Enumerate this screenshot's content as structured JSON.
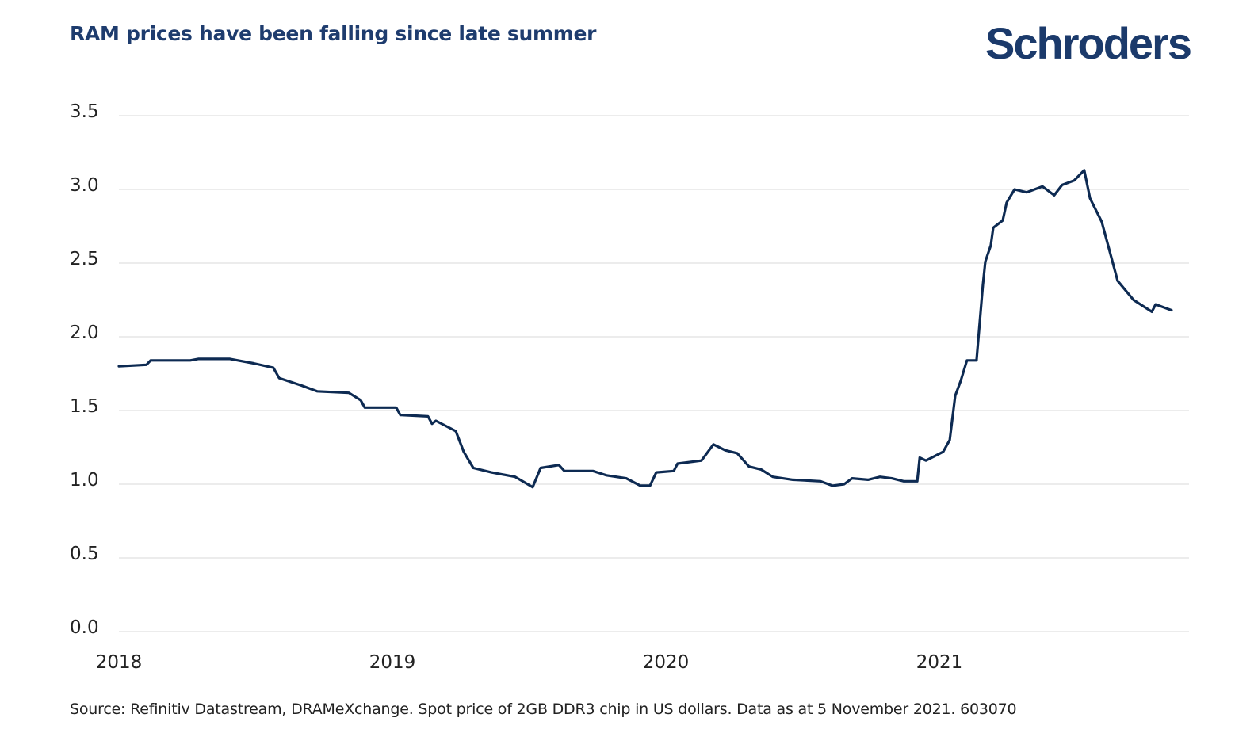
{
  "title": "RAM prices have been falling since late summer",
  "logo_text": "Schroders",
  "source": "Source: Refinitiv Datastream, DRAMeXchange. Spot price of 2GB DDR3 chip in US dollars. Data as at 5 November 2021. 603070",
  "colors": {
    "line": "#0d2a52",
    "title": "#1e3c6e",
    "grid": "#e6e6e6"
  },
  "chart_data": {
    "type": "line",
    "title": "RAM prices have been falling since late summer",
    "xlabel": "",
    "ylabel": "",
    "xlim": [
      2018,
      2021.92
    ],
    "ylim": [
      0,
      3.5
    ],
    "grid": "horizontal",
    "legend": "none",
    "x_ticks": [
      "2018",
      "2019",
      "2020",
      "2021"
    ],
    "y_ticks": [
      "0.0",
      "0.5",
      "1.0",
      "1.5",
      "2.0",
      "2.5",
      "3.0",
      "3.5"
    ],
    "series": [
      {
        "points": [
          [
            2018.0,
            1.8
          ],
          [
            2018.101,
            1.81
          ],
          [
            2018.116,
            1.84
          ],
          [
            2018.261,
            1.84
          ],
          [
            2018.29,
            1.85
          ],
          [
            2018.406,
            1.85
          ],
          [
            2018.435,
            1.84
          ],
          [
            2018.493,
            1.82
          ],
          [
            2018.565,
            1.79
          ],
          [
            2018.586,
            1.72
          ],
          [
            2018.667,
            1.67
          ],
          [
            2018.725,
            1.63
          ],
          [
            2018.841,
            1.62
          ],
          [
            2018.884,
            1.57
          ],
          [
            2018.899,
            1.52
          ],
          [
            2019.014,
            1.52
          ],
          [
            2019.029,
            1.47
          ],
          [
            2019.13,
            1.46
          ],
          [
            2019.145,
            1.41
          ],
          [
            2019.159,
            1.43
          ],
          [
            2019.232,
            1.36
          ],
          [
            2019.261,
            1.22
          ],
          [
            2019.296,
            1.11
          ],
          [
            2019.362,
            1.08
          ],
          [
            2019.449,
            1.05
          ],
          [
            2019.513,
            0.98
          ],
          [
            2019.542,
            1.11
          ],
          [
            2019.609,
            1.13
          ],
          [
            2019.629,
            1.09
          ],
          [
            2019.733,
            1.09
          ],
          [
            2019.783,
            1.06
          ],
          [
            2019.855,
            1.04
          ],
          [
            2019.907,
            0.99
          ],
          [
            2019.942,
            0.99
          ],
          [
            2019.965,
            1.08
          ],
          [
            2020.029,
            1.09
          ],
          [
            2020.043,
            1.14
          ],
          [
            2020.13,
            1.16
          ],
          [
            2020.174,
            1.27
          ],
          [
            2020.217,
            1.23
          ],
          [
            2020.261,
            1.21
          ],
          [
            2020.304,
            1.12
          ],
          [
            2020.348,
            1.1
          ],
          [
            2020.391,
            1.05
          ],
          [
            2020.464,
            1.03
          ],
          [
            2020.565,
            1.02
          ],
          [
            2020.609,
            0.99
          ],
          [
            2020.652,
            1.0
          ],
          [
            2020.681,
            1.04
          ],
          [
            2020.739,
            1.03
          ],
          [
            2020.783,
            1.05
          ],
          [
            2020.826,
            1.04
          ],
          [
            2020.87,
            1.02
          ],
          [
            2020.919,
            1.02
          ],
          [
            2020.928,
            1.18
          ],
          [
            2020.951,
            1.16
          ],
          [
            2021.014,
            1.22
          ],
          [
            2021.038,
            1.3
          ],
          [
            2021.058,
            1.6
          ],
          [
            2021.078,
            1.7
          ],
          [
            2021.101,
            1.84
          ],
          [
            2021.136,
            1.84
          ],
          [
            2021.159,
            2.35
          ],
          [
            2021.168,
            2.51
          ],
          [
            2021.188,
            2.62
          ],
          [
            2021.197,
            2.74
          ],
          [
            2021.232,
            2.79
          ],
          [
            2021.246,
            2.91
          ],
          [
            2021.275,
            3.0
          ],
          [
            2021.319,
            2.98
          ],
          [
            2021.377,
            3.02
          ],
          [
            2021.42,
            2.96
          ],
          [
            2021.449,
            3.03
          ],
          [
            2021.493,
            3.06
          ],
          [
            2021.53,
            3.13
          ],
          [
            2021.551,
            2.94
          ],
          [
            2021.594,
            2.78
          ],
          [
            2021.623,
            2.58
          ],
          [
            2021.652,
            2.38
          ],
          [
            2021.71,
            2.25
          ],
          [
            2021.777,
            2.17
          ],
          [
            2021.791,
            2.22
          ],
          [
            2021.849,
            2.18
          ]
        ]
      }
    ]
  }
}
